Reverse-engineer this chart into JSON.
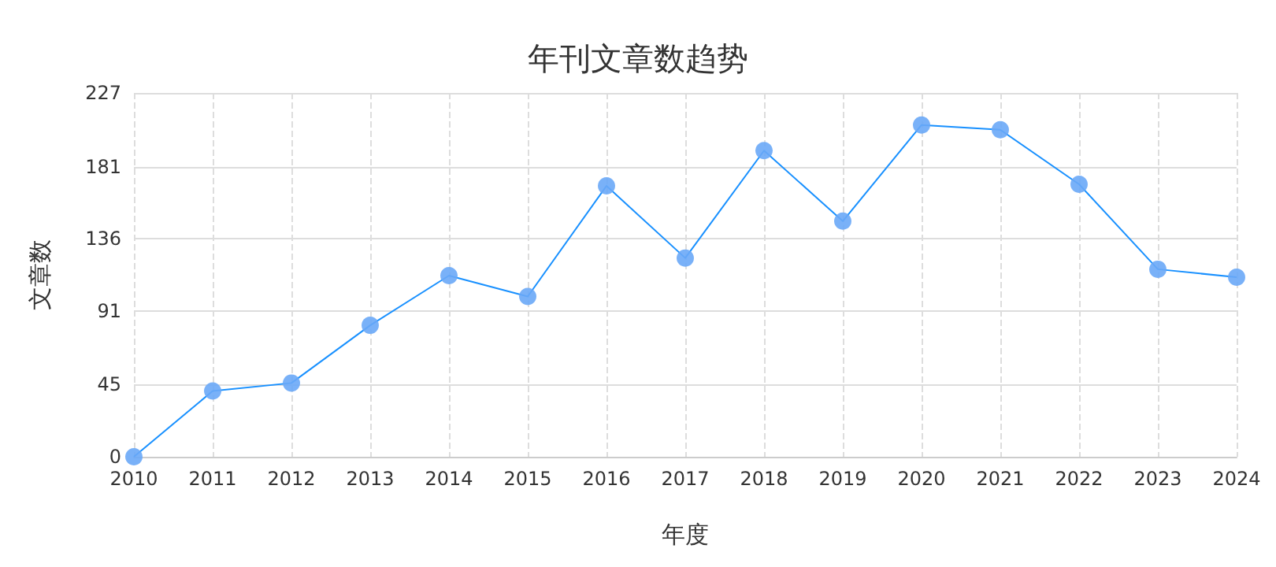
{
  "chart_data": {
    "type": "line",
    "title": "年刊文章数趋势",
    "xlabel": "年度",
    "ylabel": "文章数",
    "categories": [
      "2010",
      "2011",
      "2012",
      "2013",
      "2014",
      "2015",
      "2016",
      "2017",
      "2018",
      "2019",
      "2020",
      "2021",
      "2022",
      "2023",
      "2024"
    ],
    "series": [
      {
        "color": "#1890ff",
        "values": [
          0,
          41,
          46,
          82,
          113,
          100,
          169,
          124,
          191,
          147,
          207,
          204,
          170,
          117,
          112
        ]
      }
    ],
    "ylim": [
      0,
      227
    ],
    "yticks": [
      0,
      45,
      91,
      136,
      181,
      227
    ],
    "grid": true,
    "marker": "circle",
    "line_style": "solid"
  }
}
